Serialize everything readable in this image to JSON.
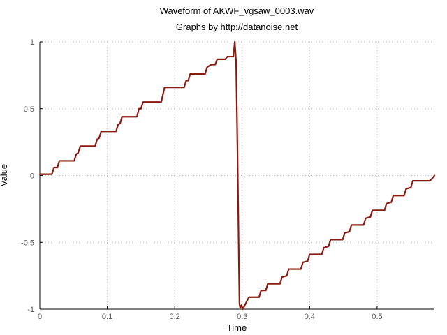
{
  "chart_data": {
    "type": "line",
    "title": "Waveform of AKWF_vgsaw_0003.wav",
    "subtitle": "Graphs by http://datanoise.net",
    "xlabel": "Time",
    "ylabel": "Value",
    "xlim": [
      0,
      0.585
    ],
    "ylim": [
      -1,
      1
    ],
    "grid": true,
    "x_ticks": [
      {
        "value": 0,
        "label": "0"
      },
      {
        "value": 0.1,
        "label": "0.1"
      },
      {
        "value": 0.2,
        "label": "0.2"
      },
      {
        "value": 0.3,
        "label": "0.3"
      },
      {
        "value": 0.4,
        "label": "0.4"
      },
      {
        "value": 0.5,
        "label": "0.5"
      }
    ],
    "y_ticks": [
      {
        "value": -1,
        "label": "-1"
      },
      {
        "value": -0.5,
        "label": "-0.5"
      },
      {
        "value": 0,
        "label": "0"
      },
      {
        "value": 0.5,
        "label": "0.5"
      },
      {
        "value": 1,
        "label": "1"
      }
    ],
    "series": [
      {
        "color": "#8b1a10",
        "x": [
          0,
          0.018,
          0.021,
          0.026,
          0.029,
          0.051,
          0.054,
          0.057,
          0.06,
          0.082,
          0.085,
          0.088,
          0.091,
          0.113,
          0.116,
          0.119,
          0.122,
          0.144,
          0.147,
          0.15,
          0.153,
          0.18,
          0.185,
          0.214,
          0.217,
          0.22,
          0.223,
          0.245,
          0.248,
          0.251,
          0.254,
          0.26,
          0.263,
          0.275,
          0.278,
          0.284,
          0.287,
          0.289,
          0.291,
          0.293,
          0.295,
          0.296,
          0.297,
          0.299,
          0.301,
          0.303,
          0.306,
          0.31,
          0.325,
          0.328,
          0.335,
          0.338,
          0.356,
          0.359,
          0.366,
          0.369,
          0.387,
          0.39,
          0.397,
          0.4,
          0.418,
          0.421,
          0.428,
          0.431,
          0.449,
          0.452,
          0.459,
          0.462,
          0.48,
          0.483,
          0.49,
          0.493,
          0.511,
          0.514,
          0.521,
          0.524,
          0.54,
          0.543,
          0.55,
          0.553,
          0.575,
          0.578,
          0.582,
          0.585
        ],
        "y": [
          0.01,
          0.01,
          0.06,
          0.06,
          0.11,
          0.11,
          0.16,
          0.17,
          0.22,
          0.22,
          0.27,
          0.28,
          0.33,
          0.33,
          0.38,
          0.39,
          0.44,
          0.44,
          0.5,
          0.5,
          0.55,
          0.55,
          0.66,
          0.66,
          0.71,
          0.71,
          0.76,
          0.76,
          0.81,
          0.82,
          0.83,
          0.83,
          0.87,
          0.87,
          0.89,
          0.89,
          0.89,
          1.0,
          0.85,
          0.2,
          -0.6,
          -0.96,
          -0.99,
          -0.97,
          -1.0,
          -0.98,
          -0.95,
          -0.91,
          -0.91,
          -0.86,
          -0.86,
          -0.81,
          -0.81,
          -0.76,
          -0.75,
          -0.7,
          -0.7,
          -0.65,
          -0.64,
          -0.59,
          -0.59,
          -0.54,
          -0.53,
          -0.48,
          -0.48,
          -0.43,
          -0.42,
          -0.37,
          -0.37,
          -0.32,
          -0.31,
          -0.26,
          -0.26,
          -0.21,
          -0.2,
          -0.15,
          -0.15,
          -0.1,
          -0.09,
          -0.04,
          -0.04,
          -0.04,
          -0.02,
          0.0
        ]
      }
    ]
  }
}
